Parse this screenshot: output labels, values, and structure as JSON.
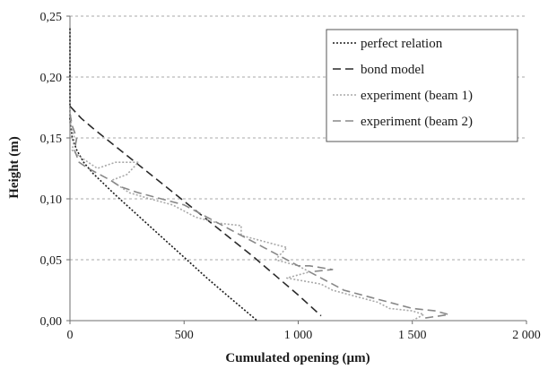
{
  "chart_data": {
    "type": "line",
    "xlabel": "Cumulated opening (µm)",
    "ylabel": "Height (m)",
    "xlim": [
      0,
      2000
    ],
    "ylim": [
      0,
      0.25
    ],
    "x_ticks": [
      0,
      500,
      1000,
      1500,
      2000
    ],
    "x_tick_labels": [
      "0",
      "500",
      "1 000",
      "1 500",
      "2 000"
    ],
    "y_ticks": [
      0,
      0.05,
      0.1,
      0.15,
      0.2,
      0.25
    ],
    "y_tick_labels": [
      "0,00",
      "0,05",
      "0,10",
      "0,15",
      "0,20",
      "0,25"
    ],
    "grid": "horizontal dashed",
    "legend_position": "top-right",
    "series": [
      {
        "name": "perfect relation",
        "color": "#1a1a1a",
        "dash": "dotted",
        "x": [
          0,
          0,
          5,
          10,
          30,
          60,
          100,
          200,
          300,
          400,
          500,
          600,
          700,
          820
        ],
        "y": [
          0.24,
          0.165,
          0.158,
          0.15,
          0.14,
          0.13,
          0.121,
          0.103,
          0.086,
          0.069,
          0.052,
          0.035,
          0.019,
          0.0
        ]
      },
      {
        "name": "bond model",
        "color": "#2a2a2a",
        "dash": "dashed",
        "x": [
          0,
          50,
          100,
          200,
          300,
          400,
          500,
          600,
          700,
          800,
          900,
          1000,
          1100
        ],
        "y": [
          0.176,
          0.166,
          0.158,
          0.143,
          0.128,
          0.113,
          0.098,
          0.083,
          0.068,
          0.053,
          0.037,
          0.021,
          0.004
        ]
      },
      {
        "name": "experiment (beam 1)",
        "color": "#a8a8a8",
        "dash": "dotted",
        "x": [
          0,
          5,
          20,
          10,
          40,
          80,
          120,
          200,
          300,
          250,
          180,
          260,
          350,
          450,
          550,
          650,
          750,
          750,
          850,
          950,
          900,
          1000,
          1050,
          950,
          1100,
          1150,
          1250,
          1350,
          1400,
          1500,
          1550,
          1500
        ],
        "y": [
          0.175,
          0.16,
          0.15,
          0.14,
          0.135,
          0.13,
          0.125,
          0.13,
          0.13,
          0.12,
          0.115,
          0.105,
          0.1,
          0.095,
          0.085,
          0.08,
          0.078,
          0.07,
          0.065,
          0.06,
          0.05,
          0.045,
          0.04,
          0.035,
          0.03,
          0.025,
          0.02,
          0.015,
          0.01,
          0.008,
          0.005,
          0.0
        ]
      },
      {
        "name": "experiment (beam 2)",
        "color": "#888888",
        "dash": "dashed",
        "x": [
          0,
          10,
          30,
          20,
          40,
          80,
          130,
          180,
          220,
          300,
          400,
          500,
          600,
          700,
          800,
          850,
          900,
          950,
          1000,
          1050,
          1150,
          1050,
          1100,
          1200,
          1300,
          1400,
          1500,
          1600,
          1660,
          1550
        ],
        "y": [
          0.17,
          0.16,
          0.15,
          0.14,
          0.13,
          0.125,
          0.12,
          0.115,
          0.11,
          0.105,
          0.1,
          0.095,
          0.085,
          0.075,
          0.065,
          0.06,
          0.055,
          0.05,
          0.045,
          0.045,
          0.042,
          0.04,
          0.035,
          0.025,
          0.02,
          0.015,
          0.01,
          0.008,
          0.005,
          0.002
        ]
      }
    ]
  }
}
